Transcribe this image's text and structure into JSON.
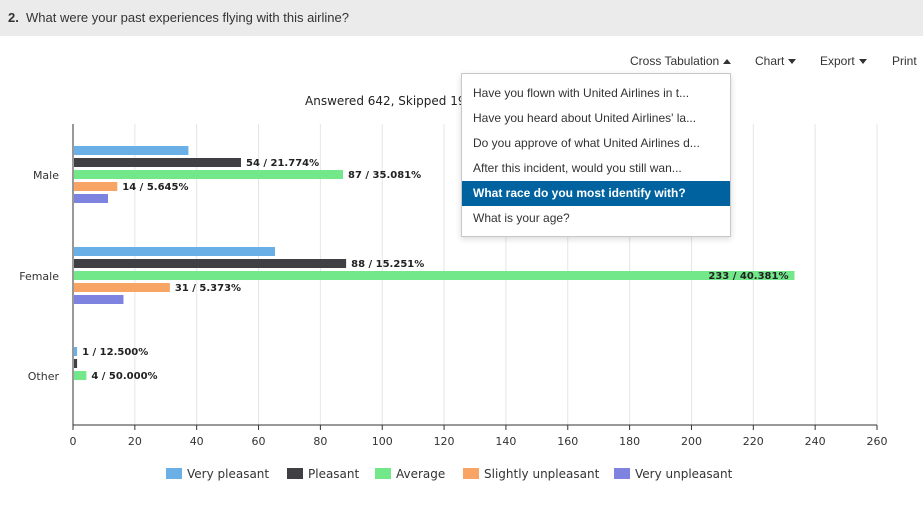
{
  "question": {
    "number": "2.",
    "text": "What were your past experiences flying with this airline?"
  },
  "toolbar": {
    "cross_tabulation": "Cross Tabulation",
    "chart": "Chart",
    "export": "Export",
    "print": "Print"
  },
  "summary": "Answered 642, Skipped 19",
  "dropdown": {
    "items": [
      "Have you flown with United Airlines in t...",
      "Have you heard about United Airlines' la...",
      "Do you approve of what United Airlines d...",
      "After this incident, would you still wan...",
      "What race do you most identify with?",
      "What is your age?"
    ],
    "selected_index": 4
  },
  "chart_data": {
    "type": "bar",
    "orientation": "horizontal",
    "categories": [
      "Male",
      "Female",
      "Other"
    ],
    "series": [
      {
        "name": "Very pleasant",
        "color": "#6aafe6",
        "values": [
          37,
          65,
          1
        ],
        "labels": [
          "",
          "",
          "1 / 12.500%"
        ]
      },
      {
        "name": "Pleasant",
        "color": "#3f3f44",
        "values": [
          54,
          88,
          1
        ],
        "labels": [
          "54 / 21.774%",
          "88 / 15.251%",
          ""
        ]
      },
      {
        "name": "Average",
        "color": "#72e88a",
        "values": [
          87,
          233,
          4
        ],
        "labels": [
          "87 / 35.081%",
          "233 / 40.381%",
          "4 / 50.000%"
        ]
      },
      {
        "name": "Slightly unpleasant",
        "color": "#f7a465",
        "values": [
          14,
          31,
          0
        ],
        "labels": [
          "14 / 5.645%",
          "31 / 5.373%",
          ""
        ]
      },
      {
        "name": "Very unpleasant",
        "color": "#7f83e0",
        "values": [
          11,
          16,
          0
        ],
        "labels": [
          "",
          "",
          ""
        ]
      }
    ],
    "xlim": [
      0,
      260
    ],
    "ticks": [
      "0",
      "20",
      "40",
      "60",
      "80",
      "100",
      "120",
      "140",
      "160",
      "180",
      "200",
      "220",
      "240",
      "260"
    ],
    "grid": true,
    "legend_position": "bottom"
  }
}
